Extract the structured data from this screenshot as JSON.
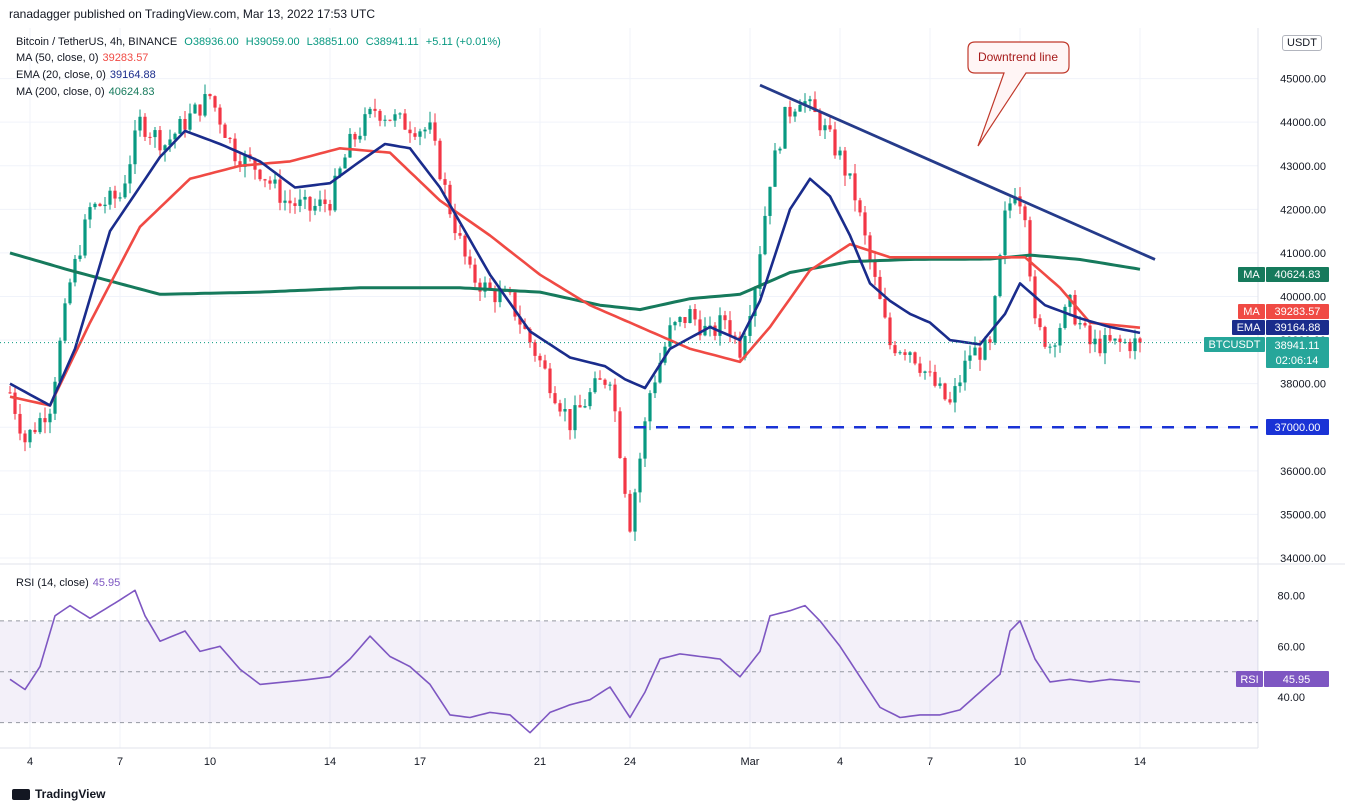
{
  "header": {
    "published": "ranadagger published on TradingView.com, Mar 13, 2022 17:53 UTC",
    "symbol": "Bitcoin / TetherUS, 4h, BINANCE",
    "open": "O38936.00",
    "high": "H39059.00",
    "low": "L38851.00",
    "close": "C38941.11",
    "change": "+5.11 (+0.01%)"
  },
  "legend": {
    "ma50_label": "MA (50, close, 0)",
    "ma50_value": "39283.57",
    "ema20_label": "EMA (20, close, 0)",
    "ema20_value": "39164.88",
    "ma200_label": "MA (200, close, 0)",
    "ma200_value": "40624.83",
    "rsi_label": "RSI (14, close)",
    "rsi_value": "45.95"
  },
  "currency": "USDT",
  "footer": {
    "brand": "TradingView"
  },
  "colors": {
    "up": "#089981",
    "down": "#f23645",
    "ema": "#1a2c8c",
    "ma50": "#f04a44",
    "ma200": "#167a5c",
    "trend": "#253b8a",
    "support": "#1a33d6",
    "rsi": "#7e57c2"
  },
  "chart_data": {
    "type": "candlestick",
    "title": "Bitcoin / TetherUS, 4h, BINANCE",
    "price_ylim": [
      34000,
      46000
    ],
    "price_ticks": [
      "34000.00",
      "35000.00",
      "36000.00",
      "37000.00",
      "38000.00",
      "39000.00",
      "40000.00",
      "41000.00",
      "42000.00",
      "43000.00",
      "44000.00",
      "45000.00"
    ],
    "x_ticks": [
      "4",
      "7",
      "10",
      "14",
      "17",
      "21",
      "24",
      "Mar",
      "4",
      "7",
      "10",
      "14"
    ],
    "x_tick_candle_index": [
      4,
      22,
      40,
      64,
      82,
      106,
      124,
      148,
      166,
      184,
      202,
      226
    ],
    "price_anchors": [
      [
        0,
        37800
      ],
      [
        3,
        36700
      ],
      [
        8,
        37500
      ],
      [
        12,
        40300
      ],
      [
        16,
        42000
      ],
      [
        22,
        42300
      ],
      [
        26,
        44000
      ],
      [
        31,
        43500
      ],
      [
        35,
        44000
      ],
      [
        40,
        44600
      ],
      [
        45,
        43300
      ],
      [
        50,
        42900
      ],
      [
        55,
        42200
      ],
      [
        60,
        42000
      ],
      [
        64,
        42200
      ],
      [
        68,
        43500
      ],
      [
        73,
        44300
      ],
      [
        78,
        44000
      ],
      [
        84,
        43800
      ],
      [
        88,
        42000
      ],
      [
        92,
        40500
      ],
      [
        96,
        40100
      ],
      [
        100,
        39900
      ],
      [
        106,
        38500
      ],
      [
        112,
        37100
      ],
      [
        117,
        37900
      ],
      [
        120,
        38200
      ],
      [
        124,
        34800
      ],
      [
        128,
        37800
      ],
      [
        132,
        39200
      ],
      [
        136,
        39600
      ],
      [
        140,
        39100
      ],
      [
        143,
        39500
      ],
      [
        146,
        38800
      ],
      [
        149,
        40300
      ],
      [
        152,
        42700
      ],
      [
        155,
        44100
      ],
      [
        158,
        44600
      ],
      [
        162,
        44000
      ],
      [
        166,
        43200
      ],
      [
        169,
        42300
      ],
      [
        172,
        40800
      ],
      [
        176,
        38900
      ],
      [
        180,
        38800
      ],
      [
        184,
        38100
      ],
      [
        188,
        37500
      ],
      [
        192,
        38700
      ],
      [
        196,
        38800
      ],
      [
        199,
        41800
      ],
      [
        201,
        42500
      ],
      [
        203,
        42000
      ],
      [
        205,
        39300
      ],
      [
        208,
        38900
      ],
      [
        212,
        39800
      ],
      [
        216,
        38900
      ],
      [
        220,
        38900
      ],
      [
        226,
        38941
      ]
    ],
    "ema20_anchors": [
      [
        0,
        38000
      ],
      [
        8,
        37500
      ],
      [
        13,
        38800
      ],
      [
        20,
        41500
      ],
      [
        30,
        43200
      ],
      [
        35,
        43800
      ],
      [
        42,
        43500
      ],
      [
        50,
        43100
      ],
      [
        57,
        42500
      ],
      [
        64,
        42600
      ],
      [
        70,
        43100
      ],
      [
        75,
        43500
      ],
      [
        80,
        43400
      ],
      [
        86,
        42500
      ],
      [
        96,
        40500
      ],
      [
        104,
        39200
      ],
      [
        112,
        38600
      ],
      [
        119,
        38400
      ],
      [
        123,
        38100
      ],
      [
        127,
        37900
      ],
      [
        132,
        38800
      ],
      [
        140,
        39300
      ],
      [
        146,
        39000
      ],
      [
        150,
        39900
      ],
      [
        156,
        42000
      ],
      [
        160,
        42700
      ],
      [
        164,
        42300
      ],
      [
        168,
        41400
      ],
      [
        172,
        40300
      ],
      [
        176,
        39900
      ],
      [
        180,
        39600
      ],
      [
        184,
        39400
      ],
      [
        188,
        39000
      ],
      [
        194,
        38900
      ],
      [
        199,
        39600
      ],
      [
        202,
        40300
      ],
      [
        207,
        39800
      ],
      [
        214,
        39500
      ],
      [
        220,
        39300
      ],
      [
        226,
        39165
      ]
    ],
    "ma50_anchors": [
      [
        0,
        37700
      ],
      [
        8,
        37500
      ],
      [
        16,
        39400
      ],
      [
        26,
        41600
      ],
      [
        36,
        42700
      ],
      [
        46,
        43000
      ],
      [
        56,
        43100
      ],
      [
        66,
        43400
      ],
      [
        76,
        43300
      ],
      [
        86,
        42200
      ],
      [
        96,
        41400
      ],
      [
        106,
        40500
      ],
      [
        116,
        39800
      ],
      [
        126,
        39300
      ],
      [
        136,
        38800
      ],
      [
        146,
        38500
      ],
      [
        152,
        39300
      ],
      [
        160,
        40600
      ],
      [
        168,
        41200
      ],
      [
        176,
        40900
      ],
      [
        186,
        40900
      ],
      [
        196,
        40900
      ],
      [
        203,
        40900
      ],
      [
        210,
        40200
      ],
      [
        216,
        39400
      ],
      [
        226,
        39284
      ]
    ],
    "ma200_anchors": [
      [
        0,
        41000
      ],
      [
        12,
        40600
      ],
      [
        30,
        40050
      ],
      [
        50,
        40100
      ],
      [
        70,
        40200
      ],
      [
        90,
        40200
      ],
      [
        106,
        40100
      ],
      [
        118,
        39800
      ],
      [
        126,
        39700
      ],
      [
        136,
        39950
      ],
      [
        146,
        40050
      ],
      [
        156,
        40550
      ],
      [
        168,
        40800
      ],
      [
        180,
        40850
      ],
      [
        196,
        40860
      ],
      [
        204,
        40950
      ],
      [
        214,
        40850
      ],
      [
        226,
        40625
      ]
    ],
    "rsi_anchors": [
      [
        0,
        47
      ],
      [
        3,
        43
      ],
      [
        6,
        52
      ],
      [
        9,
        72
      ],
      [
        12,
        76
      ],
      [
        16,
        71
      ],
      [
        21,
        77
      ],
      [
        25,
        82
      ],
      [
        27,
        72
      ],
      [
        30,
        62
      ],
      [
        35,
        66
      ],
      [
        38,
        58
      ],
      [
        42,
        60
      ],
      [
        46,
        51
      ],
      [
        50,
        45
      ],
      [
        55,
        46
      ],
      [
        60,
        47
      ],
      [
        64,
        48
      ],
      [
        68,
        55
      ],
      [
        72,
        64
      ],
      [
        76,
        56
      ],
      [
        80,
        52
      ],
      [
        84,
        45
      ],
      [
        88,
        33
      ],
      [
        92,
        32
      ],
      [
        96,
        34
      ],
      [
        100,
        33
      ],
      [
        104,
        26
      ],
      [
        108,
        34
      ],
      [
        112,
        37
      ],
      [
        116,
        39
      ],
      [
        120,
        44
      ],
      [
        124,
        32
      ],
      [
        127,
        42
      ],
      [
        130,
        55
      ],
      [
        134,
        57
      ],
      [
        138,
        56
      ],
      [
        142,
        55
      ],
      [
        146,
        48
      ],
      [
        150,
        58
      ],
      [
        152,
        72
      ],
      [
        156,
        74
      ],
      [
        159,
        76
      ],
      [
        162,
        70
      ],
      [
        166,
        60
      ],
      [
        170,
        48
      ],
      [
        174,
        36
      ],
      [
        178,
        32
      ],
      [
        182,
        33
      ],
      [
        186,
        33
      ],
      [
        190,
        35
      ],
      [
        194,
        42
      ],
      [
        198,
        49
      ],
      [
        200,
        66
      ],
      [
        202,
        70
      ],
      [
        205,
        55
      ],
      [
        208,
        46
      ],
      [
        212,
        47
      ],
      [
        216,
        46
      ],
      [
        220,
        47
      ],
      [
        226,
        45.95
      ]
    ],
    "rsi_ylim": [
      20,
      90
    ],
    "rsi_ticks": [
      "40.00",
      "60.00",
      "80.00"
    ],
    "rsi_band": [
      30,
      70
    ],
    "rsi_midline": 50,
    "trendline": {
      "start": [
        150,
        44850
      ],
      "end": [
        229,
        40850
      ]
    },
    "support_level": {
      "value": 37000,
      "start_index": 124
    },
    "annotation": "Downtrend line",
    "last_price_labels": {
      "ma200": "40624.83",
      "ma50": "39283.57",
      "ema20": "39164.88",
      "last": "38941.11",
      "countdown": "02:06:14",
      "support": "37000.00"
    },
    "label_tags": {
      "ma": "MA",
      "ema": "EMA",
      "symbol": "BTCUSDT",
      "rsi": "RSI"
    },
    "ylabel": "USDT"
  }
}
